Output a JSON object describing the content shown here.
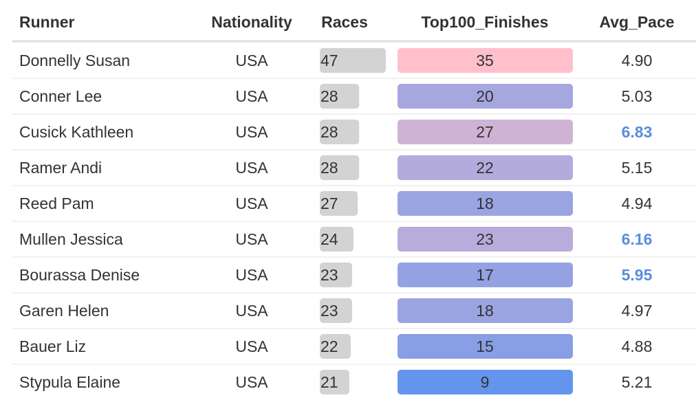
{
  "chart_data": {
    "type": "table",
    "columns": [
      "Runner",
      "Nationality",
      "Races",
      "Top100_Finishes",
      "Avg_Pace"
    ],
    "rows": [
      {
        "runner": "Donnelly Susan",
        "nationality": "USA",
        "races": 47,
        "top100": 35,
        "pace": "4.90",
        "pace_highlight": false
      },
      {
        "runner": "Conner Lee",
        "nationality": "USA",
        "races": 28,
        "top100": 20,
        "pace": "5.03",
        "pace_highlight": false
      },
      {
        "runner": "Cusick Kathleen",
        "nationality": "USA",
        "races": 28,
        "top100": 27,
        "pace": "6.83",
        "pace_highlight": true
      },
      {
        "runner": "Ramer Andi",
        "nationality": "USA",
        "races": 28,
        "top100": 22,
        "pace": "5.15",
        "pace_highlight": false
      },
      {
        "runner": "Reed Pam",
        "nationality": "USA",
        "races": 27,
        "top100": 18,
        "pace": "4.94",
        "pace_highlight": false
      },
      {
        "runner": "Mullen Jessica",
        "nationality": "USA",
        "races": 24,
        "top100": 23,
        "pace": "6.16",
        "pace_highlight": true
      },
      {
        "runner": "Bourassa Denise",
        "nationality": "USA",
        "races": 23,
        "top100": 17,
        "pace": "5.95",
        "pace_highlight": true
      },
      {
        "runner": "Garen Helen",
        "nationality": "USA",
        "races": 23,
        "top100": 18,
        "pace": "4.97",
        "pace_highlight": false
      },
      {
        "runner": "Bauer Liz",
        "nationality": "USA",
        "races": 22,
        "top100": 15,
        "pace": "4.88",
        "pace_highlight": false
      },
      {
        "runner": "Stypula Elaine",
        "nationality": "USA",
        "races": 21,
        "top100": 9,
        "pace": "5.21",
        "pace_highlight": false
      }
    ],
    "races_bar_color": "#d3d3d3",
    "top100_color_low": "#6495ed",
    "top100_color_high": "#ffc0cb",
    "highlight_text_color": "#5b8ddd",
    "text_color": "#333333",
    "grid": true
  }
}
